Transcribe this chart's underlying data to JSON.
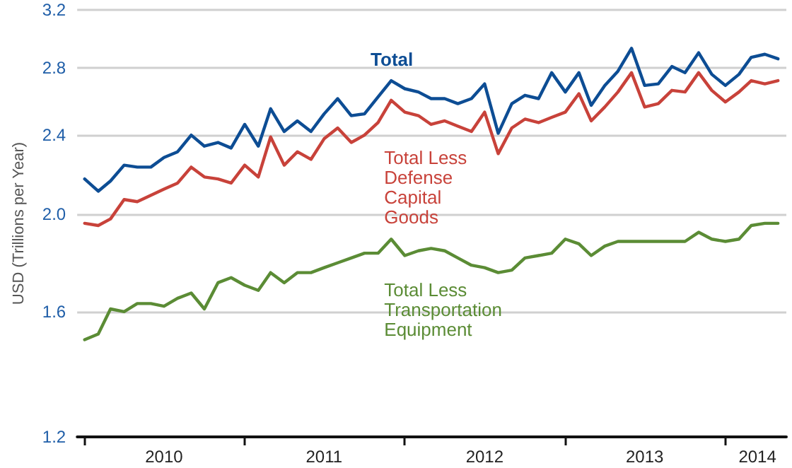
{
  "chart_data": {
    "type": "line",
    "ylabel": "USD (Trillions per Year)",
    "log": "y",
    "ylim": [
      1.2,
      3.2
    ],
    "yticks": [
      {
        "value": 1.2,
        "label": "1.2"
      },
      {
        "value": 1.6,
        "label": "1.6"
      },
      {
        "value": 2,
        "label": "2.0"
      },
      {
        "value": 2.4,
        "label": "2.4"
      },
      {
        "value": 2.8,
        "label": "2.8"
      },
      {
        "value": 3.2,
        "label": "3.2"
      }
    ],
    "xlim": [
      "2009-12-15",
      "2014-05-20"
    ],
    "xticks": [
      {
        "value": "2010-01-01",
        "label": null
      },
      {
        "value": "2010-07-01",
        "label": "2010"
      },
      {
        "value": "2011-01-01",
        "label": null
      },
      {
        "value": "2011-07-01",
        "label": "2011"
      },
      {
        "value": "2012-01-01",
        "label": null
      },
      {
        "value": "2012-07-01",
        "label": "2012"
      },
      {
        "value": "2013-01-01",
        "label": null
      },
      {
        "value": "2013-07-01",
        "label": "2013"
      },
      {
        "value": "2014-01-01",
        "label": null
      },
      {
        "value": "2014-03-15",
        "label": "2014"
      }
    ],
    "grid": "y",
    "legend": false,
    "marker": "none",
    "line_style": "solid",
    "x": [
      "2010-01",
      "2010-02",
      "2010-03",
      "2010-04",
      "2010-05",
      "2010-06",
      "2010-07",
      "2010-08",
      "2010-09",
      "2010-10",
      "2010-11",
      "2010-12",
      "2011-01",
      "2011-02",
      "2011-03",
      "2011-04",
      "2011-05",
      "2011-06",
      "2011-07",
      "2011-08",
      "2011-09",
      "2011-10",
      "2011-11",
      "2011-12",
      "2012-01",
      "2012-02",
      "2012-03",
      "2012-04",
      "2012-05",
      "2012-06",
      "2012-07",
      "2012-08",
      "2012-09",
      "2012-10",
      "2012-11",
      "2012-12",
      "2013-01",
      "2013-02",
      "2013-03",
      "2013-04",
      "2013-05",
      "2013-06",
      "2013-07",
      "2013-08",
      "2013-09",
      "2013-10",
      "2013-11",
      "2013-12",
      "2014-01",
      "2014-02",
      "2014-03",
      "2014-04",
      "2014-05"
    ],
    "series": [
      {
        "name": "Total",
        "color": "#0d4d94",
        "values": [
          2.17,
          2.11,
          2.16,
          2.24,
          2.23,
          2.23,
          2.28,
          2.31,
          2.4,
          2.34,
          2.36,
          2.33,
          2.46,
          2.34,
          2.55,
          2.42,
          2.48,
          2.42,
          2.52,
          2.61,
          2.51,
          2.52,
          2.62,
          2.72,
          2.67,
          2.65,
          2.61,
          2.61,
          2.58,
          2.61,
          2.7,
          2.41,
          2.58,
          2.63,
          2.61,
          2.77,
          2.65,
          2.77,
          2.57,
          2.69,
          2.78,
          2.93,
          2.69,
          2.7,
          2.81,
          2.77,
          2.9,
          2.76,
          2.69,
          2.76,
          2.87,
          2.89,
          2.86
        ]
      },
      {
        "name": "Total Less Defense Capital Goods",
        "color": "#c8423a",
        "values": [
          1.96,
          1.95,
          1.98,
          2.07,
          2.06,
          2.09,
          2.12,
          2.15,
          2.23,
          2.18,
          2.17,
          2.15,
          2.24,
          2.18,
          2.39,
          2.24,
          2.31,
          2.27,
          2.38,
          2.44,
          2.36,
          2.4,
          2.47,
          2.6,
          2.53,
          2.51,
          2.46,
          2.48,
          2.45,
          2.42,
          2.53,
          2.3,
          2.44,
          2.49,
          2.47,
          2.5,
          2.53,
          2.64,
          2.48,
          2.56,
          2.65,
          2.77,
          2.56,
          2.58,
          2.66,
          2.65,
          2.77,
          2.66,
          2.59,
          2.65,
          2.72,
          2.7,
          2.72
        ]
      },
      {
        "name": "Total Less Transportation Equipment",
        "color": "#5b8c35",
        "values": [
          1.5,
          1.52,
          1.61,
          1.6,
          1.63,
          1.63,
          1.62,
          1.65,
          1.67,
          1.61,
          1.71,
          1.73,
          1.7,
          1.68,
          1.75,
          1.71,
          1.75,
          1.75,
          1.77,
          1.79,
          1.81,
          1.83,
          1.83,
          1.89,
          1.82,
          1.84,
          1.85,
          1.84,
          1.81,
          1.78,
          1.77,
          1.75,
          1.76,
          1.81,
          1.82,
          1.83,
          1.89,
          1.87,
          1.82,
          1.86,
          1.88,
          1.88,
          1.88,
          1.88,
          1.88,
          1.88,
          1.92,
          1.89,
          1.88,
          1.89,
          1.95,
          1.96,
          1.96
        ]
      }
    ]
  }
}
